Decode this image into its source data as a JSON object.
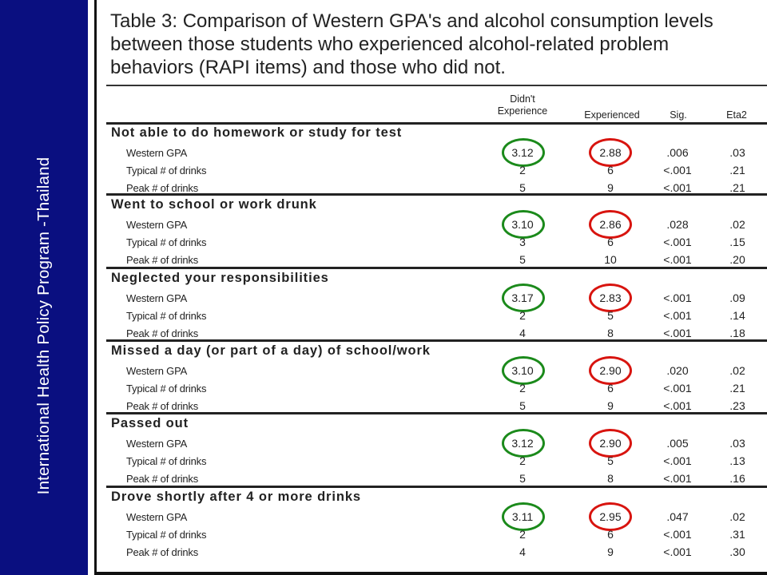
{
  "sidebar": {
    "caption": "International Health Policy Program -Thailand"
  },
  "table": {
    "title": "Table 3: Comparison of Western GPA's and alcohol consumption levels between those students who experienced alcohol-related problem behaviors (RAPI items) and those who did not.",
    "headers": {
      "didnt_line1": "Didn't",
      "didnt_line2": "Experience",
      "experienced": "Experienced",
      "sig": "Sig.",
      "eta2": "Eta2"
    },
    "sections": [
      {
        "title": "Not able to do homework or study for test",
        "rows": [
          {
            "label": "Western GPA",
            "didnt": "3.12",
            "experienced": "2.88",
            "sig": ".006",
            "eta2": ".03"
          },
          {
            "label": "Typical # of drinks",
            "didnt": "2",
            "experienced": "6",
            "sig": "<.001",
            "eta2": ".21"
          },
          {
            "label": "Peak # of drinks",
            "didnt": "5",
            "experienced": "9",
            "sig": "<.001",
            "eta2": ".21"
          }
        ]
      },
      {
        "title": "Went to school or work drunk",
        "rows": [
          {
            "label": "Western GPA",
            "didnt": "3.10",
            "experienced": "2.86",
            "sig": ".028",
            "eta2": ".02"
          },
          {
            "label": "Typical # of drinks",
            "didnt": "3",
            "experienced": "6",
            "sig": "<.001",
            "eta2": ".15"
          },
          {
            "label": "Peak # of drinks",
            "didnt": "5",
            "experienced": "10",
            "sig": "<.001",
            "eta2": ".20"
          }
        ]
      },
      {
        "title": "Neglected your responsibilities",
        "rows": [
          {
            "label": "Western GPA",
            "didnt": "3.17",
            "experienced": "2.83",
            "sig": "<.001",
            "eta2": ".09"
          },
          {
            "label": "Typical # of drinks",
            "didnt": "2",
            "experienced": "5",
            "sig": "<.001",
            "eta2": ".14"
          },
          {
            "label": "Peak # of drinks",
            "didnt": "4",
            "experienced": "8",
            "sig": "<.001",
            "eta2": ".18"
          }
        ]
      },
      {
        "title": "Missed a day (or part of a day) of school/work",
        "rows": [
          {
            "label": "Western GPA",
            "didnt": "3.10",
            "experienced": "2.90",
            "sig": ".020",
            "eta2": ".02"
          },
          {
            "label": "Typical # of drinks",
            "didnt": "2",
            "experienced": "6",
            "sig": "<.001",
            "eta2": ".21"
          },
          {
            "label": "Peak # of drinks",
            "didnt": "5",
            "experienced": "9",
            "sig": "<.001",
            "eta2": ".23"
          }
        ]
      },
      {
        "title": "Passed out",
        "rows": [
          {
            "label": "Western GPA",
            "didnt": "3.12",
            "experienced": "2.90",
            "sig": ".005",
            "eta2": ".03"
          },
          {
            "label": "Typical # of drinks",
            "didnt": "2",
            "experienced": "5",
            "sig": "<.001",
            "eta2": ".13"
          },
          {
            "label": "Peak # of drinks",
            "didnt": "5",
            "experienced": "8",
            "sig": "<.001",
            "eta2": ".16"
          }
        ]
      },
      {
        "title": "Drove shortly after 4 or more drinks",
        "rows": [
          {
            "label": "Western GPA",
            "didnt": "3.11",
            "experienced": "2.95",
            "sig": ".047",
            "eta2": ".02"
          },
          {
            "label": "Typical # of drinks",
            "didnt": "2",
            "experienced": "6",
            "sig": "<.001",
            "eta2": ".31"
          },
          {
            "label": "Peak # of drinks",
            "didnt": "4",
            "experienced": "9",
            "sig": "<.001",
            "eta2": ".30"
          }
        ]
      }
    ]
  },
  "colors": {
    "sidebar": "#0a0f80",
    "didnt_circle": "#1b8a1b",
    "experienced_circle": "#d8140f"
  }
}
